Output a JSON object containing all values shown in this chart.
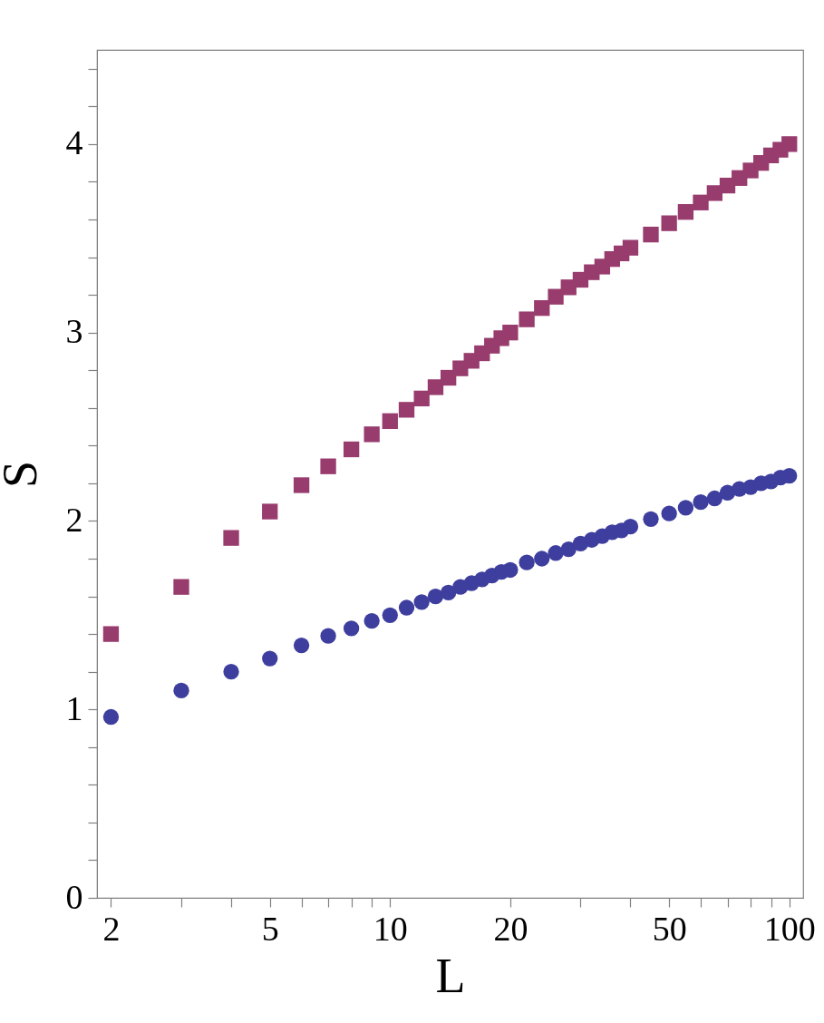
{
  "chart_data": {
    "type": "scatter",
    "xlabel": "L",
    "ylabel": "S",
    "log": "x",
    "grid": false,
    "xlim": [
      1.845,
      108.3
    ],
    "ylim": [
      0,
      4.5
    ],
    "xticks": [
      2,
      {
        "value": 3,
        "label": null
      },
      {
        "value": 4,
        "label": null
      },
      5,
      {
        "value": 6,
        "label": null
      },
      {
        "value": 7,
        "label": null
      },
      {
        "value": 8,
        "label": null
      },
      {
        "value": 9,
        "label": null
      },
      10,
      20,
      {
        "value": 30,
        "label": null
      },
      {
        "value": 40,
        "label": null
      },
      50,
      {
        "value": 60,
        "label": null
      },
      {
        "value": 70,
        "label": null
      },
      {
        "value": 80,
        "label": null
      },
      {
        "value": 90,
        "label": null
      },
      100
    ],
    "yticks": [
      0,
      {
        "value": 0.2,
        "label": null
      },
      {
        "value": 0.4,
        "label": null
      },
      {
        "value": 0.6,
        "label": null
      },
      {
        "value": 0.8,
        "label": null
      },
      1,
      {
        "value": 1.2,
        "label": null
      },
      {
        "value": 1.4,
        "label": null
      },
      {
        "value": 1.6,
        "label": null
      },
      {
        "value": 1.8,
        "label": null
      },
      2,
      {
        "value": 2.2,
        "label": null
      },
      {
        "value": 2.4,
        "label": null
      },
      {
        "value": 2.6,
        "label": null
      },
      {
        "value": 2.8,
        "label": null
      },
      3,
      {
        "value": 3.2,
        "label": null
      },
      {
        "value": 3.4,
        "label": null
      },
      {
        "value": 3.6,
        "label": null
      },
      {
        "value": 3.8,
        "label": null
      },
      4,
      {
        "value": 4.2,
        "label": null
      },
      {
        "value": 4.4,
        "label": null
      }
    ],
    "x": [
      2,
      3,
      4,
      5,
      6,
      7,
      8,
      9,
      10,
      11,
      12,
      13,
      14,
      15,
      16,
      17,
      18,
      19,
      20,
      22,
      24,
      26,
      28,
      30,
      32,
      34,
      36,
      38,
      40,
      45,
      50,
      55,
      60,
      65,
      70,
      75,
      80,
      85,
      90,
      95,
      100
    ],
    "series": [
      {
        "color": "#983c6e",
        "marker": "square",
        "values": [
          1.4,
          1.65,
          1.91,
          2.05,
          2.19,
          2.29,
          2.38,
          2.46,
          2.53,
          2.59,
          2.65,
          2.71,
          2.76,
          2.81,
          2.85,
          2.89,
          2.93,
          2.97,
          3.0,
          3.07,
          3.13,
          3.19,
          3.24,
          3.28,
          3.32,
          3.35,
          3.39,
          3.42,
          3.45,
          3.52,
          3.58,
          3.64,
          3.69,
          3.74,
          3.78,
          3.82,
          3.86,
          3.9,
          3.94,
          3.97,
          4.0
        ]
      },
      {
        "color": "#3e3e9e",
        "marker": "circle",
        "values": [
          0.96,
          1.1,
          1.2,
          1.27,
          1.34,
          1.39,
          1.43,
          1.47,
          1.5,
          1.54,
          1.57,
          1.6,
          1.62,
          1.65,
          1.67,
          1.69,
          1.71,
          1.73,
          1.74,
          1.78,
          1.8,
          1.83,
          1.85,
          1.88,
          1.9,
          1.92,
          1.94,
          1.95,
          1.97,
          2.01,
          2.04,
          2.07,
          2.1,
          2.12,
          2.15,
          2.17,
          2.18,
          2.2,
          2.21,
          2.23,
          2.24
        ]
      }
    ]
  }
}
